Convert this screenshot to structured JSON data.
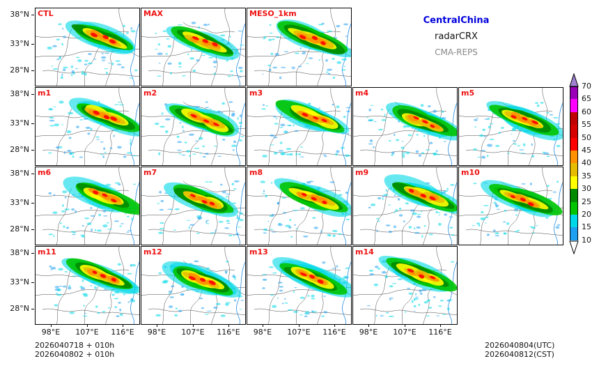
{
  "title": {
    "region": "CentralChina",
    "variable": "radarCRX",
    "model": "CMA-REPS"
  },
  "panels": [
    {
      "label": "CTL",
      "row": 0,
      "col": 0
    },
    {
      "label": "MAX",
      "row": 0,
      "col": 1
    },
    {
      "label": "MESO_1km",
      "row": 0,
      "col": 2
    },
    {
      "label": "m1",
      "row": 1,
      "col": 0
    },
    {
      "label": "m2",
      "row": 1,
      "col": 1
    },
    {
      "label": "m3",
      "row": 1,
      "col": 2
    },
    {
      "label": "m4",
      "row": 1,
      "col": 3
    },
    {
      "label": "m5",
      "row": 1,
      "col": 4
    },
    {
      "label": "m6",
      "row": 2,
      "col": 0
    },
    {
      "label": "m7",
      "row": 2,
      "col": 1
    },
    {
      "label": "m8",
      "row": 2,
      "col": 2
    },
    {
      "label": "m9",
      "row": 2,
      "col": 3
    },
    {
      "label": "m10",
      "row": 2,
      "col": 4
    },
    {
      "label": "m11",
      "row": 3,
      "col": 0
    },
    {
      "label": "m12",
      "row": 3,
      "col": 1
    },
    {
      "label": "m13",
      "row": 3,
      "col": 2
    },
    {
      "label": "m14",
      "row": 3,
      "col": 3
    }
  ],
  "axes": {
    "lat_labels": [
      "38°N",
      "33°N",
      "28°N"
    ],
    "lon_labels": [
      "98°E",
      "107°E",
      "116°E"
    ]
  },
  "colorbar": {
    "levels": [
      "10",
      "15",
      "20",
      "25",
      "30",
      "35",
      "40",
      "45",
      "50",
      "55",
      "60",
      "65",
      "70"
    ],
    "colors": [
      "#1e9ff0",
      "#00d8e8",
      "#00c400",
      "#008a00",
      "#ffff00",
      "#e6bc00",
      "#ff9000",
      "#ff0000",
      "#d60000",
      "#c00000",
      "#ff00ff",
      "#9a00b8",
      "#a080d0"
    ]
  },
  "footer": {
    "init_line1": "2026040718  +  010h",
    "init_line2": "2026040802  +  010h",
    "valid_utc": "2026040804(UTC)",
    "valid_cst": "2026040812(CST)"
  }
}
